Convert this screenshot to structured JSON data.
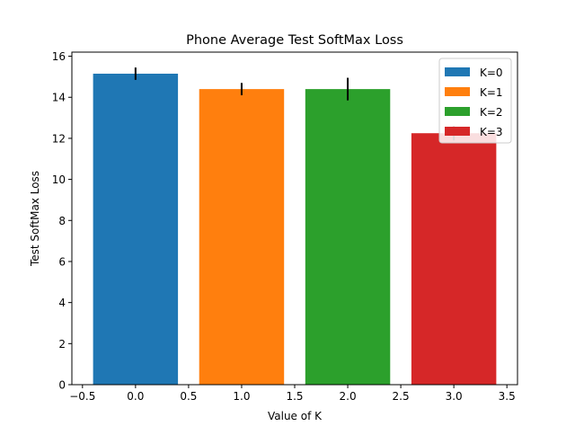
{
  "chart_data": {
    "type": "bar",
    "title": "Phone Average Test SoftMax Loss",
    "xlabel": "Value of K",
    "ylabel": "Test SoftMax Loss",
    "xlim": [
      -0.6,
      3.6
    ],
    "ylim": [
      0,
      16.2
    ],
    "bar_width": 0.8,
    "xticks": [
      -0.5,
      0.0,
      0.5,
      1.0,
      1.5,
      2.0,
      2.5,
      3.0,
      3.5
    ],
    "xtick_labels": [
      "−0.5",
      "0.0",
      "0.5",
      "1.0",
      "1.5",
      "2.0",
      "2.5",
      "3.0",
      "3.5"
    ],
    "yticks": [
      0,
      2,
      4,
      6,
      8,
      10,
      12,
      14,
      16
    ],
    "ytick_labels": [
      "0",
      "2",
      "4",
      "6",
      "8",
      "10",
      "12",
      "14",
      "16"
    ],
    "legend_position": "top-right",
    "grid": false,
    "series": [
      {
        "name": "K=0",
        "x": 0,
        "value": 15.15,
        "error": 0.3,
        "color": "#1f77b4"
      },
      {
        "name": "K=1",
        "x": 1,
        "value": 14.4,
        "error": 0.3,
        "color": "#ff7f0e"
      },
      {
        "name": "K=2",
        "x": 2,
        "value": 14.4,
        "error": 0.55,
        "color": "#2ca02c"
      },
      {
        "name": "K=3",
        "x": 3,
        "value": 12.25,
        "error": 0.35,
        "color": "#d62728"
      }
    ]
  }
}
